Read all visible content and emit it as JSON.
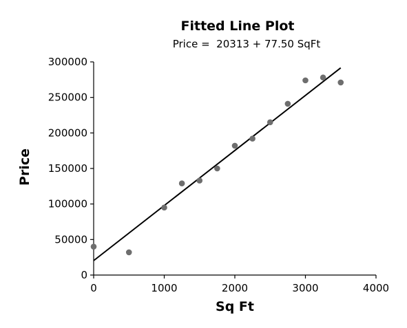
{
  "chart_data": {
    "type": "scatter",
    "title": "Fitted Line Plot",
    "subtitle": "Price =  20313 + 77.50 SqFt",
    "xlabel": "Sq Ft",
    "ylabel": "Price",
    "xlim": [
      0,
      4000
    ],
    "ylim": [
      0,
      300000
    ],
    "x_ticks": [
      "0",
      "1000",
      "2000",
      "3000",
      "4000"
    ],
    "y_ticks": [
      "0",
      "50000",
      "100000",
      "150000",
      "200000",
      "250000",
      "300000"
    ],
    "grid": false,
    "legend": "none",
    "point_color": "#6e6e6e",
    "line_color": "#000000",
    "points": [
      {
        "x": 0,
        "y": 40000
      },
      {
        "x": 500,
        "y": 32000
      },
      {
        "x": 1000,
        "y": 95000
      },
      {
        "x": 1250,
        "y": 129000
      },
      {
        "x": 1500,
        "y": 133000
      },
      {
        "x": 1750,
        "y": 150000
      },
      {
        "x": 2000,
        "y": 182000
      },
      {
        "x": 2250,
        "y": 192000
      },
      {
        "x": 2500,
        "y": 215000
      },
      {
        "x": 2750,
        "y": 241000
      },
      {
        "x": 3000,
        "y": 274000
      },
      {
        "x": 3250,
        "y": 278000
      },
      {
        "x": 3500,
        "y": 271000
      }
    ],
    "fit": {
      "intercept": 20313,
      "slope": 77.5,
      "x_range": [
        0,
        3500
      ]
    }
  }
}
